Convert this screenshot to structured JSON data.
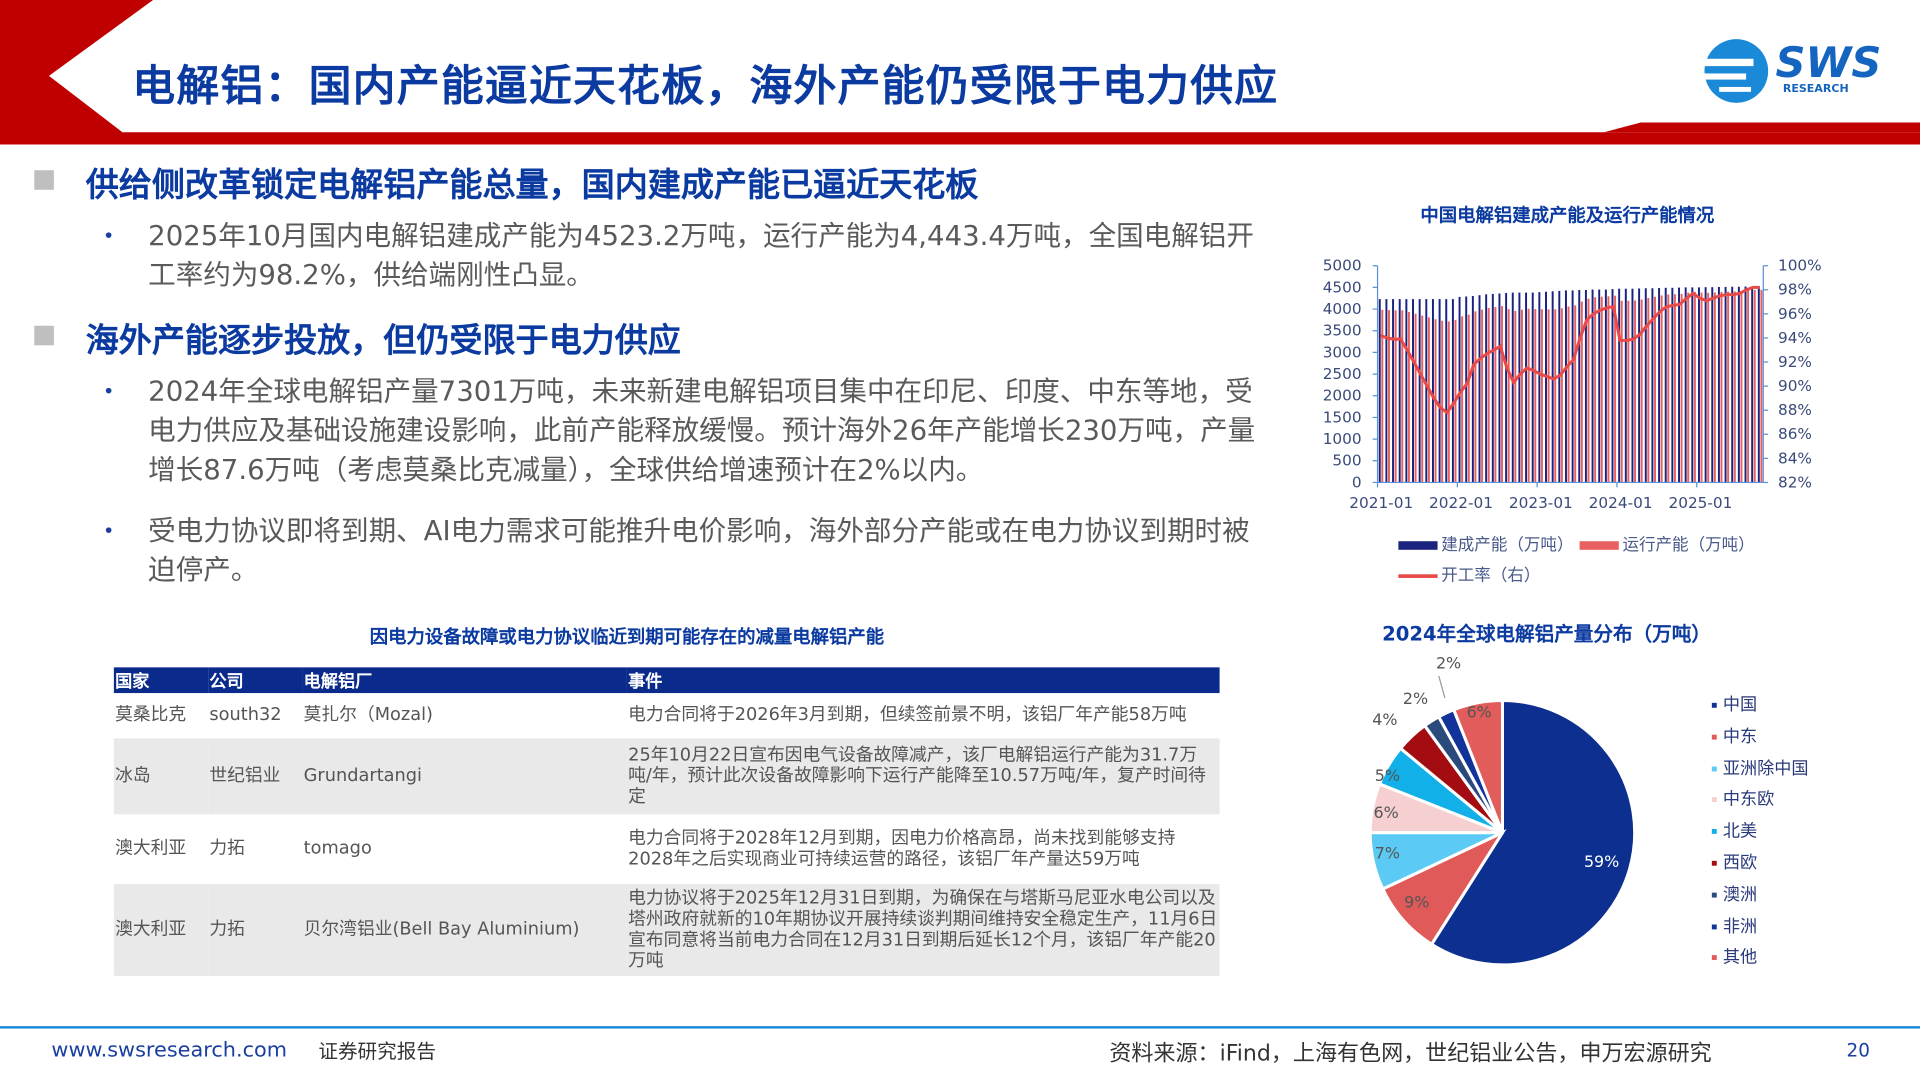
{
  "header": {
    "title": "电解铝：国内产能逼近天花板，海外产能仍受限于电力供应",
    "logo_text": "SWS",
    "logo_sub": "RESEARCH",
    "accent": "#c00000",
    "brand_blue": "#0b3aa0"
  },
  "sections": [
    {
      "heading": "供给侧改革锁定电解铝产能总量，国内建成产能已逼近天花板",
      "bullets": [
        "2025年10月国内电解铝建成产能为4523.2万吨，运行产能为4,443.4万吨，全国电解铝开工率约为98.2%，供给端刚性凸显。"
      ]
    },
    {
      "heading": "海外产能逐步投放，但仍受限于电力供应",
      "bullets": [
        "2024年全球电解铝产量7301万吨，未来新建电解铝项目集中在印尼、印度、中东等地，受电力供应及基础设施建设影响，此前产能释放缓慢。预计海外26年产能增长230万吨，产量增长87.6万吨（考虑莫桑比克减量），全球供给增速预计在2%以内。",
        "受电力协议即将到期、AI电力需求可能推升电价影响，海外部分产能或在电力协议到期时被迫停产。"
      ]
    }
  ],
  "table": {
    "caption": "因电力设备故障或电力协议临近到期可能存在的减量电解铝产能",
    "headers": [
      "国家",
      "公司",
      "电解铝厂",
      "事件"
    ],
    "rows": [
      [
        "莫桑比克",
        "south32",
        "莫扎尔（Mozal)",
        "电力合同将于2026年3月到期，但续签前景不明，该铝厂年产能58万吨"
      ],
      [
        "冰岛",
        "世纪铝业",
        "Grundartangi",
        "25年10月22日宣布因电气设备故障减产，该厂电解铝运行产能为31.7万吨/年，预计此次设备故障影响下运行产能降至10.57万吨/年，复产时间待定"
      ],
      [
        "澳大利亚",
        "力拓",
        "tomago",
        "电力合同将于2028年12月到期，因电力价格高昂，尚未找到能够支持2028年之后实现商业可持续运营的路径，该铝厂年产量达59万吨"
      ],
      [
        "澳大利亚",
        "力拓",
        "贝尔湾铝业(Bell Bay Aluminium)",
        "电力协议将于2025年12月31日到期，为确保在与塔斯马尼亚水电公司以及塔州政府就新的10年期协议开展持续谈判期间维持安全稳定生产，11月6日宣布同意将当前电力合同在12月31日到期后延长12个月，该铝厂年产能20万吨"
      ]
    ]
  },
  "chart_data": [
    {
      "type": "bar+line",
      "title": "中国电解铝建成产能及运行产能情况",
      "x_start": "2021-01",
      "x_end": "2025-10",
      "x_ticks": [
        "2021-01",
        "2022-01",
        "2023-01",
        "2024-01",
        "2025-01"
      ],
      "y_left": {
        "range": [
          0,
          5000
        ],
        "ticks": [
          "0",
          "500",
          "1000",
          "1500",
          "2000",
          "2500",
          "3000",
          "3500",
          "4000",
          "4500",
          "5000"
        ]
      },
      "y_right": {
        "range": [
          82,
          100
        ],
        "ticks": [
          "82%",
          "84%",
          "86%",
          "88%",
          "90%",
          "92%",
          "94%",
          "96%",
          "98%",
          "100%"
        ]
      },
      "legend_position": "bottom",
      "series": [
        {
          "name": "建成产能（万吨）",
          "type": "bar",
          "axis": "left",
          "color": "#1a237e",
          "values": [
            4230,
            4230,
            4230,
            4230,
            4230,
            4230,
            4230,
            4230,
            4230,
            4230,
            4230,
            4230,
            4280,
            4290,
            4300,
            4320,
            4340,
            4350,
            4360,
            4370,
            4380,
            4380,
            4380,
            4380,
            4390,
            4400,
            4410,
            4420,
            4430,
            4430,
            4440,
            4440,
            4450,
            4450,
            4450,
            4460,
            4470,
            4470,
            4470,
            4475,
            4480,
            4480,
            4485,
            4490,
            4490,
            4495,
            4500,
            4500,
            4500,
            4505,
            4505,
            4510,
            4510,
            4515,
            4515,
            4520,
            4520,
            4523.2
          ]
        },
        {
          "name": "运行产能（万吨）",
          "type": "bar",
          "axis": "left",
          "color": "#e8605f",
          "values": [
            3985,
            3976,
            3972,
            3972,
            3934,
            3892,
            3849,
            3807,
            3765,
            3731,
            3714,
            3748,
            3831,
            3870,
            3947,
            3987,
            4023,
            4046,
            4068,
            3999,
            3955,
            3986,
            4008,
            3999,
            3995,
            3995,
            3995,
            4018,
            4058,
            4084,
            4174,
            4240,
            4272,
            4285,
            4294,
            4308,
            4193,
            4193,
            4197,
            4220,
            4256,
            4283,
            4315,
            4337,
            4342,
            4351,
            4379,
            4397,
            4379,
            4374,
            4383,
            4397,
            4402,
            4407,
            4411,
            4430,
            4439,
            4443.4
          ]
        },
        {
          "name": "开工率（右）",
          "type": "line",
          "axis": "right",
          "color": "#e84a4a",
          "values": [
            94.2,
            94.0,
            93.9,
            93.9,
            93.0,
            92.0,
            91.0,
            90.0,
            89.0,
            88.2,
            87.8,
            88.6,
            89.5,
            90.2,
            91.8,
            92.3,
            92.7,
            93.0,
            93.3,
            91.5,
            90.3,
            91.0,
            91.5,
            91.3,
            91.0,
            90.8,
            90.6,
            90.9,
            91.6,
            92.2,
            94.0,
            95.5,
            96.0,
            96.3,
            96.5,
            96.6,
            93.8,
            93.8,
            93.9,
            94.3,
            95.0,
            95.6,
            96.2,
            96.6,
            96.7,
            96.8,
            97.3,
            97.7,
            97.3,
            97.1,
            97.3,
            97.5,
            97.6,
            97.6,
            97.7,
            98.0,
            98.2,
            98.2
          ]
        }
      ]
    },
    {
      "type": "pie",
      "title": "2024年全球电解铝产量分布（万吨）",
      "legend_position": "right",
      "slices": [
        {
          "name": "中国",
          "value": 59,
          "label": "59%",
          "color": "#0d2f8f"
        },
        {
          "name": "中东",
          "value": 9,
          "label": "9%",
          "color": "#e05a5a"
        },
        {
          "name": "亚洲除中国",
          "value": 7,
          "label": "7%",
          "color": "#5bcbf5"
        },
        {
          "name": "中东欧",
          "value": 6,
          "label": "6%",
          "color": "#f6d0d0"
        },
        {
          "name": "北美",
          "value": 5,
          "label": "5%",
          "color": "#12b0e8"
        },
        {
          "name": "西欧",
          "value": 4,
          "label": "4%",
          "color": "#a30d12"
        },
        {
          "name": "澳洲",
          "value": 2,
          "label": "2%",
          "color": "#2b4a7c"
        },
        {
          "name": "非洲",
          "value": 2,
          "label": "2%",
          "color": "#12349a"
        },
        {
          "name": "其他",
          "value": 6,
          "label": "6%",
          "color": "#e25c5c"
        }
      ]
    }
  ],
  "footer": {
    "url": "www.swsresearch.com",
    "report_type": "证券研究报告",
    "source": "资料来源：iFind，上海有色网，世纪铝业公告，申万宏源研究",
    "page": "20"
  }
}
